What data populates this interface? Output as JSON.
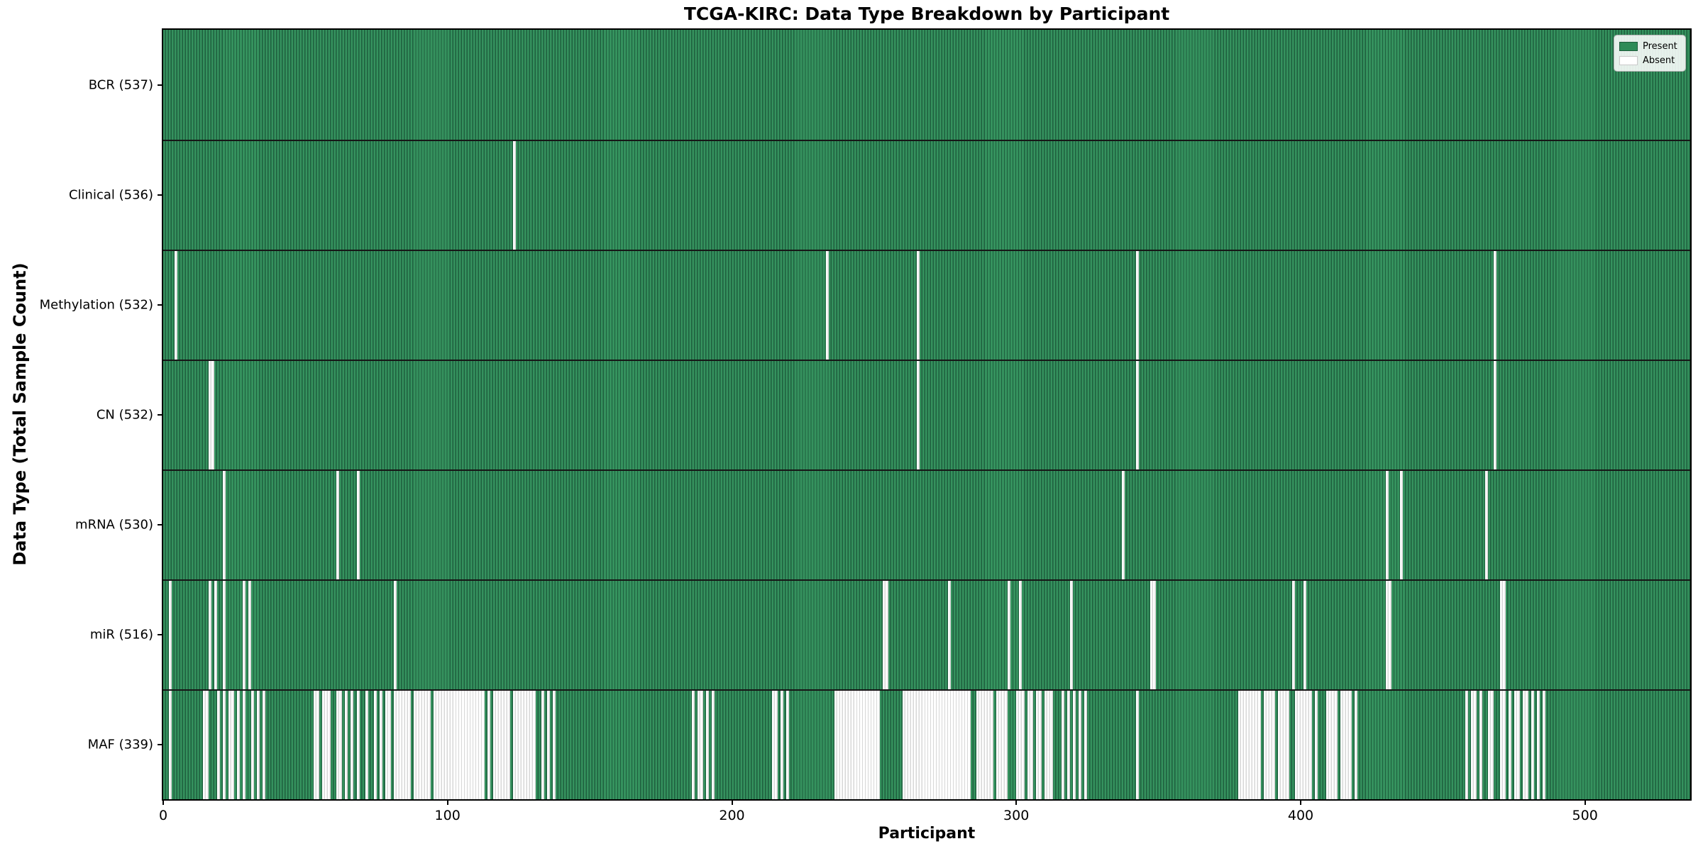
{
  "colors": {
    "present_fill": "#2e8b57",
    "present_edge": "#1e5f3e",
    "absent_fill": "#ffffff",
    "absent_edge": "#d7d7d7",
    "separator": "#161616",
    "background": "#ffffff"
  },
  "chart_data": {
    "type": "heatmap",
    "title": "TCGA-KIRC: Data Type Breakdown by Participant",
    "xlabel": "Participant",
    "ylabel": "Data Type (Total Sample Count)",
    "legend_labels": [
      "Present",
      "Absent"
    ],
    "legend_position": "upper right",
    "grid": false,
    "n_participants": 537,
    "xlim": [
      0,
      537
    ],
    "x_ticks": [
      0,
      100,
      200,
      300,
      400,
      500
    ],
    "rows": [
      {
        "data_type": "BCR",
        "label": "BCR (537)",
        "present_count": 537,
        "absent_count": 0,
        "absent_ranges": []
      },
      {
        "data_type": "Clinical",
        "label": "Clinical (536)",
        "present_count": 536,
        "absent_count": 1,
        "absent_ranges": [
          [
            123,
            123
          ]
        ]
      },
      {
        "data_type": "Methylation",
        "label": "Methylation (532)",
        "present_count": 532,
        "absent_count": 5,
        "absent_ranges": [
          [
            4,
            4
          ],
          [
            233,
            233
          ],
          [
            265,
            265
          ],
          [
            342,
            342
          ],
          [
            468,
            468
          ]
        ]
      },
      {
        "data_type": "CN",
        "label": "CN (532)",
        "present_count": 532,
        "absent_count": 5,
        "absent_ranges": [
          [
            16,
            17
          ],
          [
            265,
            265
          ],
          [
            342,
            342
          ],
          [
            468,
            468
          ]
        ]
      },
      {
        "data_type": "mRNA",
        "label": "mRNA (530)",
        "present_count": 530,
        "absent_count": 7,
        "absent_ranges": [
          [
            21,
            21
          ],
          [
            61,
            61
          ],
          [
            68,
            68
          ],
          [
            337,
            337
          ],
          [
            430,
            430
          ],
          [
            435,
            435
          ],
          [
            465,
            465
          ]
        ]
      },
      {
        "data_type": "miR",
        "label": "miR (516)",
        "present_count": 516,
        "absent_count": 21,
        "absent_ranges": [
          [
            2,
            2
          ],
          [
            16,
            16
          ],
          [
            18,
            18
          ],
          [
            21,
            21
          ],
          [
            28,
            28
          ],
          [
            30,
            30
          ],
          [
            81,
            81
          ],
          [
            253,
            254
          ],
          [
            276,
            276
          ],
          [
            297,
            297
          ],
          [
            301,
            301
          ],
          [
            319,
            319
          ],
          [
            347,
            348
          ],
          [
            397,
            397
          ],
          [
            401,
            401
          ],
          [
            430,
            431
          ],
          [
            470,
            471
          ]
        ]
      },
      {
        "data_type": "MAF",
        "label": "MAF (339)",
        "present_count": 339,
        "absent_count": 198,
        "absent_ranges": [
          [
            2,
            2
          ],
          [
            14,
            15
          ],
          [
            19,
            19
          ],
          [
            21,
            21
          ],
          [
            23,
            24
          ],
          [
            26,
            26
          ],
          [
            28,
            28
          ],
          [
            31,
            31
          ],
          [
            33,
            33
          ],
          [
            35,
            35
          ],
          [
            53,
            54
          ],
          [
            56,
            58
          ],
          [
            61,
            62
          ],
          [
            64,
            64
          ],
          [
            66,
            66
          ],
          [
            68,
            68
          ],
          [
            71,
            71
          ],
          [
            74,
            74
          ],
          [
            76,
            76
          ],
          [
            78,
            79
          ],
          [
            81,
            86
          ],
          [
            88,
            93
          ],
          [
            95,
            112
          ],
          [
            114,
            114
          ],
          [
            116,
            121
          ],
          [
            123,
            130
          ],
          [
            133,
            133
          ],
          [
            135,
            135
          ],
          [
            137,
            137
          ],
          [
            186,
            186
          ],
          [
            188,
            189
          ],
          [
            191,
            191
          ],
          [
            193,
            193
          ],
          [
            214,
            215
          ],
          [
            217,
            217
          ],
          [
            219,
            219
          ],
          [
            236,
            251
          ],
          [
            260,
            283
          ],
          [
            286,
            291
          ],
          [
            293,
            296
          ],
          [
            300,
            302
          ],
          [
            304,
            305
          ],
          [
            307,
            308
          ],
          [
            310,
            312
          ],
          [
            316,
            316
          ],
          [
            318,
            318
          ],
          [
            320,
            320
          ],
          [
            322,
            322
          ],
          [
            324,
            324
          ],
          [
            342,
            342
          ],
          [
            378,
            385
          ],
          [
            387,
            390
          ],
          [
            392,
            395
          ],
          [
            398,
            403
          ],
          [
            405,
            405
          ],
          [
            409,
            412
          ],
          [
            414,
            417
          ],
          [
            419,
            419
          ],
          [
            458,
            458
          ],
          [
            460,
            461
          ],
          [
            463,
            463
          ],
          [
            466,
            467
          ],
          [
            470,
            471
          ],
          [
            473,
            473
          ],
          [
            475,
            476
          ],
          [
            478,
            479
          ],
          [
            481,
            481
          ],
          [
            483,
            483
          ],
          [
            485,
            485
          ]
        ]
      }
    ]
  }
}
